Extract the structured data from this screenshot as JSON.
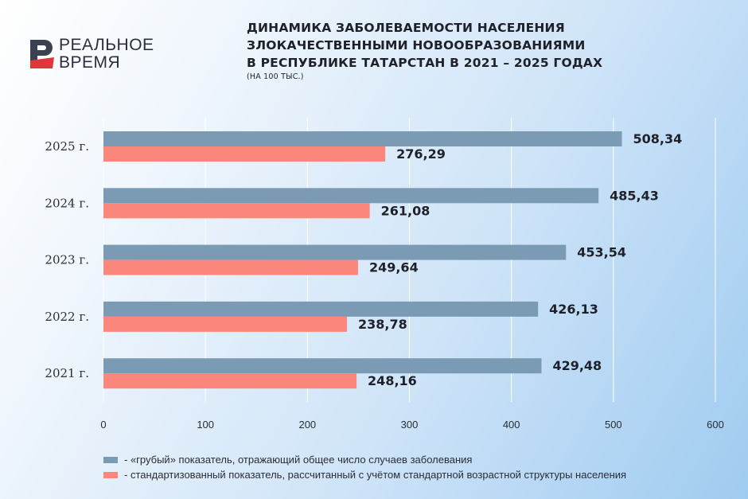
{
  "logo": {
    "line1": "РЕАЛЬНОЕ",
    "line2": "ВРЕМЯ"
  },
  "chart_data": {
    "type": "bar",
    "orientation": "horizontal",
    "title": "ДИНАМИКА ЗАБОЛЕВАЕМОСТИ НАСЕЛЕНИЯ ЗЛОКАЧЕСТВЕННЫМИ НОВООБРАЗОВАНИЯМИ В РЕСПУБЛИКЕ ТАТАРСТАН В 2021 – 2025 ГОДАХ",
    "title_lines": [
      "ДИНАМИКА ЗАБОЛЕВАЕМОСТИ НАСЕЛЕНИЯ",
      "ЗЛОКАЧЕСТВЕННЫМИ НОВООБРАЗОВАНИЯМИ",
      "В РЕСПУБЛИКЕ ТАТАРСТАН В 2021 – 2025 ГОДАХ"
    ],
    "subtitle": "(НА 100 ТЫС.)",
    "categories": [
      "2025 г.",
      "2024 г.",
      "2023 г.",
      "2022 г.",
      "2021 г."
    ],
    "series": [
      {
        "name": "- «грубый» показатель, отражающий общее число случаев заболевания",
        "color": "#7b9bb5",
        "values": [
          508.34,
          485.43,
          453.54,
          426.13,
          429.48
        ],
        "labels": [
          "508,34",
          "485,43",
          "453,54",
          "426,13",
          "429,48"
        ]
      },
      {
        "name": "- стандартизованный показатель, рассчитанный с учётом стандартной возрастной структуры населения",
        "color": "#fb867c",
        "values": [
          276.29,
          261.08,
          249.64,
          238.78,
          248.16
        ],
        "labels": [
          "276,29",
          "261,08",
          "249,64",
          "238,78",
          "248,16"
        ]
      }
    ],
    "xlim": [
      0,
      600
    ],
    "xticks": [
      "0",
      "100",
      "200",
      "300",
      "400",
      "500",
      "600"
    ],
    "grid": true,
    "legend_position": "bottom-left"
  }
}
